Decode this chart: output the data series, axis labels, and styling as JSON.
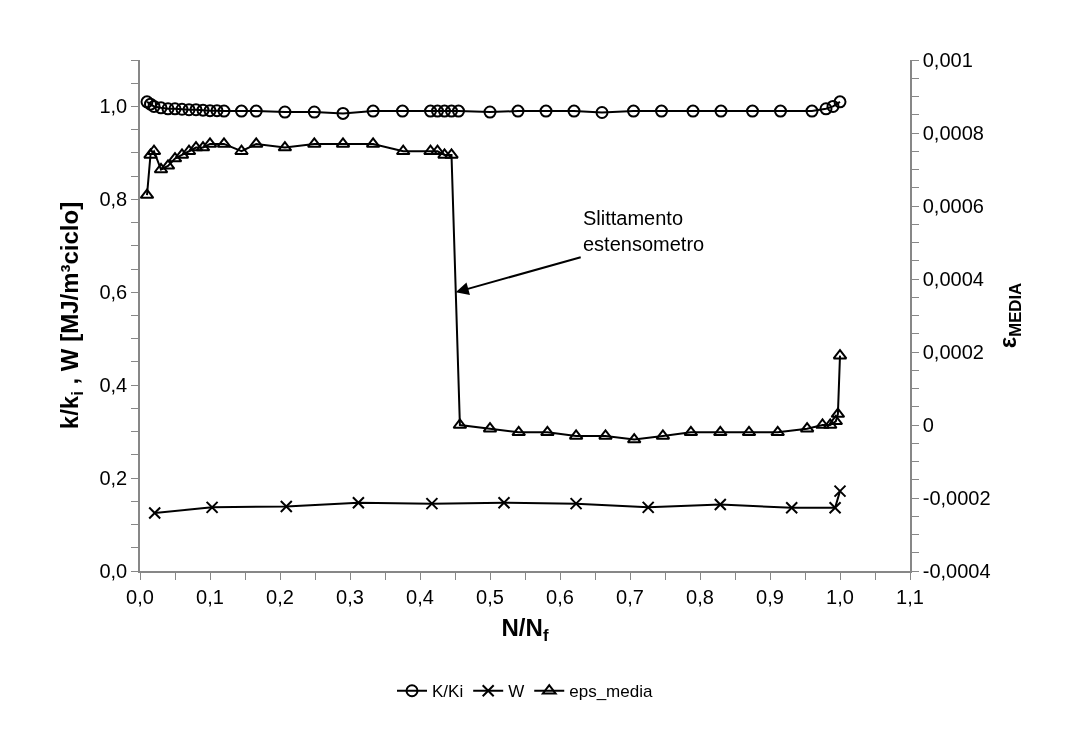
{
  "chart_data": {
    "type": "line",
    "xlabel": "N/N$_{f}$",
    "ylabel": "k/k$_{i}$ , W [MJ/m³ciclo]",
    "y2label": "ε$_{MEDIA}$",
    "series": [
      {
        "name": "K/Ki",
        "color": "#000000",
        "marker": "circle",
        "x": [
          0.01,
          0.015,
          0.02,
          0.03,
          0.04,
          0.05,
          0.06,
          0.07,
          0.08,
          0.09,
          0.1,
          0.11,
          0.12,
          0.145,
          0.166,
          0.207,
          0.249,
          0.29,
          0.333,
          0.375,
          0.415,
          0.425,
          0.435,
          0.445,
          0.455,
          0.5,
          0.54,
          0.58,
          0.62,
          0.66,
          0.705,
          0.745,
          0.79,
          0.83,
          0.875,
          0.915,
          0.96,
          0.98,
          0.99,
          1.0
        ],
        "values": [
          1.01,
          1.005,
          1.0,
          0.997,
          0.995,
          0.995,
          0.994,
          0.993,
          0.993,
          0.992,
          0.991,
          0.991,
          0.99,
          0.99,
          0.99,
          0.988,
          0.988,
          0.985,
          0.99,
          0.99,
          0.99,
          0.99,
          0.99,
          0.99,
          0.99,
          0.988,
          0.99,
          0.99,
          0.99,
          0.987,
          0.99,
          0.99,
          0.99,
          0.99,
          0.99,
          0.99,
          0.99,
          0.995,
          1.0,
          1.01
        ]
      },
      {
        "name": "W",
        "color": "#000000",
        "marker": "cross",
        "x": [
          0.021,
          0.103,
          0.209,
          0.312,
          0.417,
          0.52,
          0.623,
          0.726,
          0.829,
          0.931,
          0.993,
          1.0
        ],
        "values": [
          0.125,
          0.137,
          0.139,
          0.147,
          0.145,
          0.147,
          0.145,
          0.137,
          0.143,
          0.136,
          0.136,
          0.172
        ]
      },
      {
        "name": "eps_media",
        "color": "#000000",
        "marker": "triangle",
        "axis": "y2",
        "x": [
          0.01,
          0.015,
          0.02,
          0.03,
          0.04,
          0.05,
          0.06,
          0.07,
          0.08,
          0.09,
          0.1,
          0.12,
          0.145,
          0.166,
          0.207,
          0.249,
          0.29,
          0.333,
          0.376,
          0.415,
          0.425,
          0.435,
          0.445,
          0.457,
          0.5,
          0.541,
          0.582,
          0.623,
          0.665,
          0.706,
          0.747,
          0.787,
          0.829,
          0.87,
          0.911,
          0.953,
          0.975,
          0.986,
          0.994,
          0.997,
          1.0
        ],
        "values": [
          0.00063,
          0.00074,
          0.00075,
          0.0007,
          0.00071,
          0.00073,
          0.00074,
          0.00075,
          0.00076,
          0.00076,
          0.00077,
          0.00077,
          0.00075,
          0.00077,
          0.00076,
          0.00077,
          0.00077,
          0.00077,
          0.00075,
          0.00075,
          0.00075,
          0.00074,
          0.00074,
          0.0,
          -1e-05,
          -2e-05,
          -2e-05,
          -3e-05,
          -3e-05,
          -4e-05,
          -3e-05,
          -2e-05,
          -2e-05,
          -2e-05,
          -2e-05,
          -1e-05,
          0.0,
          0.0,
          1e-05,
          3e-05,
          0.00019
        ]
      }
    ],
    "xlim": [
      0,
      1.1
    ],
    "xticks": [
      {
        "value": 0,
        "label": "0,0"
      },
      {
        "value": 0.1,
        "label": "0,1"
      },
      {
        "value": 0.2,
        "label": "0,2"
      },
      {
        "value": 0.3,
        "label": "0,3"
      },
      {
        "value": 0.4,
        "label": "0,4"
      },
      {
        "value": 0.5,
        "label": "0,5"
      },
      {
        "value": 0.6,
        "label": "0,6"
      },
      {
        "value": 0.7,
        "label": "0,7"
      },
      {
        "value": 0.8,
        "label": "0,8"
      },
      {
        "value": 0.9,
        "label": "0,9"
      },
      {
        "value": 1.0,
        "label": "1,0"
      },
      {
        "value": 1.1,
        "label": "1,1"
      }
    ],
    "ylim": [
      0,
      1.1
    ],
    "yticks": [
      {
        "value": 0,
        "label": "0,0"
      },
      {
        "value": 0.2,
        "label": "0,2"
      },
      {
        "value": 0.4,
        "label": "0,4"
      },
      {
        "value": 0.6,
        "label": "0,6"
      },
      {
        "value": 0.8,
        "label": "0,8"
      },
      {
        "value": 1.0,
        "label": "1,0"
      }
    ],
    "y2lim": [
      -0.0004,
      0.001
    ],
    "y2ticks": [
      {
        "value": -0.0004,
        "label": "-0,0004"
      },
      {
        "value": -0.0002,
        "label": "-0,0002"
      },
      0,
      {
        "value": 0.0002,
        "label": "0,0002"
      },
      {
        "value": 0.0004,
        "label": "0,0004"
      },
      {
        "value": 0.0006,
        "label": "0,0006"
      },
      {
        "value": 0.0008,
        "label": "0,0008"
      },
      {
        "value": 0.001,
        "label": "0,001"
      }
    ],
    "annotations": [
      {
        "text": "Slittamento\nestensometro",
        "x": 0.451,
        "y": 0.6
      }
    ],
    "legend": "bottom",
    "line_style": "solid"
  }
}
